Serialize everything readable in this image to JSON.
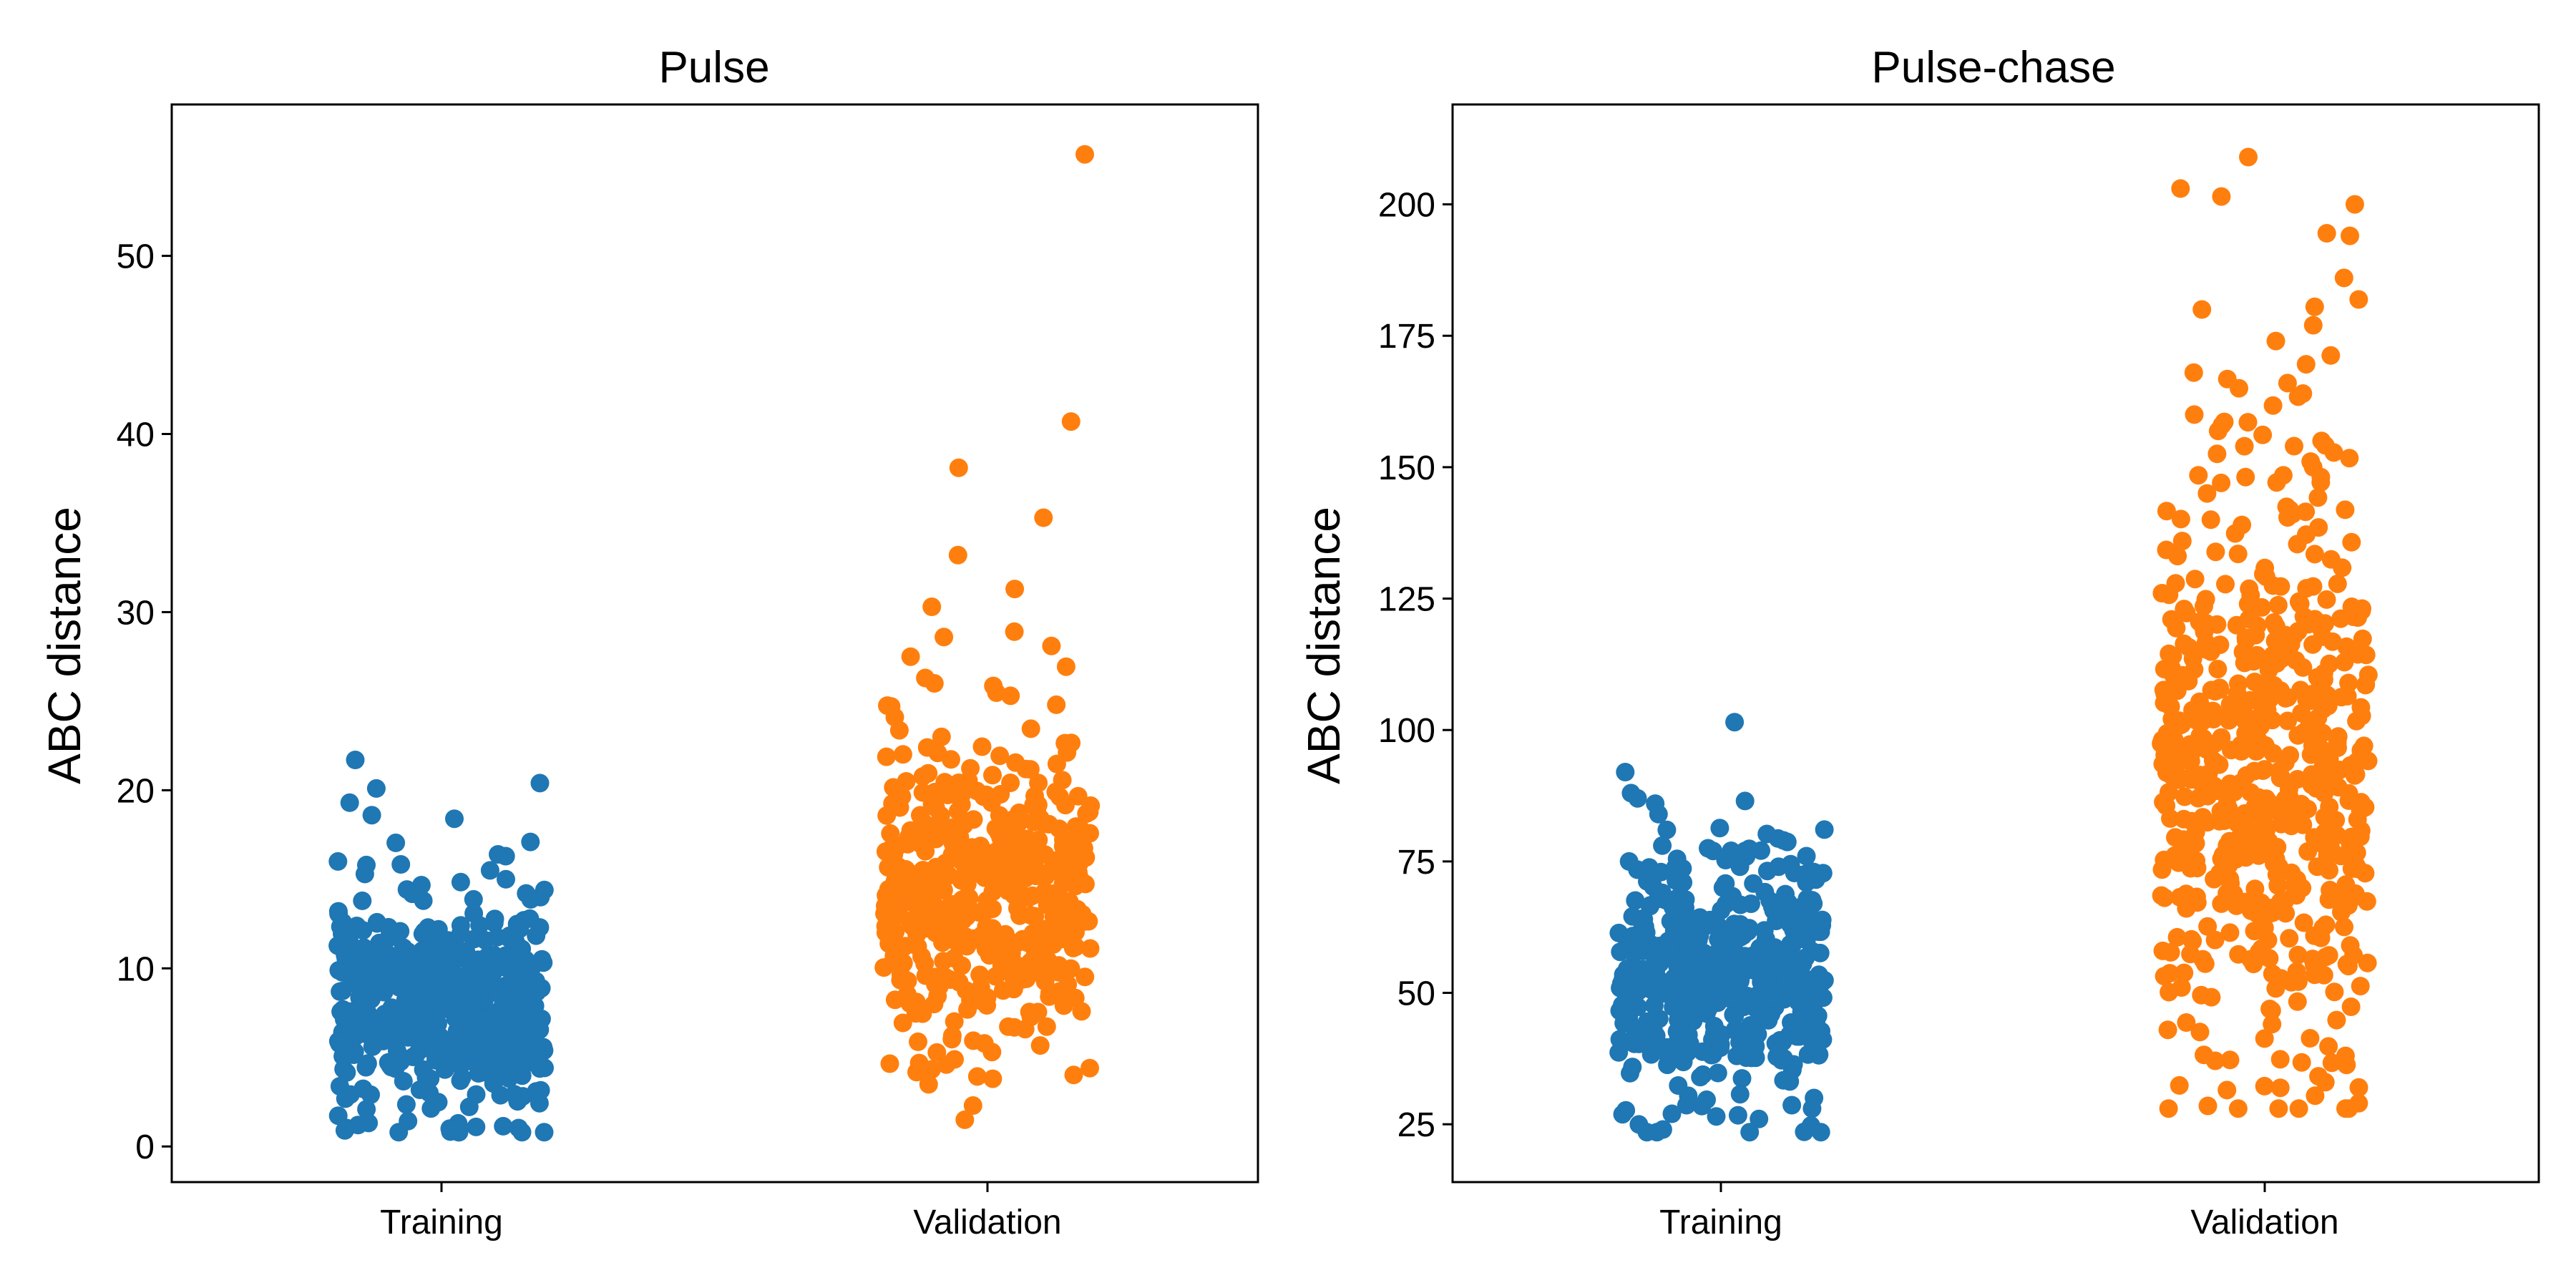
{
  "chart_data": [
    {
      "type": "scatter",
      "subtype": "strip",
      "title": "Pulse",
      "ylabel": "ABC distance",
      "xlabel": "",
      "categories": [
        "Training",
        "Validation"
      ],
      "ylim": [
        -2,
        58.5
      ],
      "yticks": [
        0,
        10,
        20,
        30,
        40,
        50
      ],
      "grid": false,
      "series": [
        {
          "category": "Training",
          "color": "#1f77b4",
          "count": 500,
          "distribution": {
            "center": 8,
            "spread": 3,
            "min": 0.8,
            "max": 21.7
          },
          "highlighted_values": [
            21.7,
            20.4,
            20.1,
            19.3,
            18.6,
            18.4,
            17.1,
            16.4,
            16.3,
            16.0,
            15.8,
            15.5,
            15.3,
            15.0,
            14.4,
            13.8,
            13.2,
            1.3,
            1.2,
            1.0,
            0.9,
            0.8
          ]
        },
        {
          "category": "Validation",
          "color": "#ff7f0e",
          "count": 500,
          "distribution": {
            "center": 14,
            "spread": 4,
            "min": 1.5,
            "max": 55.7
          },
          "highlighted_values": [
            55.7,
            40.7,
            38.1,
            35.3,
            33.2,
            31.3,
            30.3,
            28.9,
            28.6,
            28.1,
            27.5,
            26.3,
            26.0,
            25.3,
            24.8,
            24.1,
            23.0,
            22.4,
            4.6,
            4.4,
            3.8,
            2.3,
            1.5
          ]
        }
      ]
    },
    {
      "type": "scatter",
      "subtype": "strip",
      "title": "Pulse-chase",
      "ylabel": "ABC distance",
      "xlabel": "",
      "categories": [
        "Training",
        "Validation"
      ],
      "ylim": [
        14,
        219
      ],
      "yticks": [
        25,
        50,
        75,
        100,
        125,
        150,
        175,
        200
      ],
      "grid": false,
      "series": [
        {
          "category": "Training",
          "color": "#1f77b4",
          "count": 500,
          "distribution": {
            "center": 52,
            "spread": 11,
            "min": 23.5,
            "max": 101.5
          },
          "highlighted_values": [
            101.5,
            92,
            88,
            87,
            86.5,
            86,
            84,
            81,
            79,
            78,
            77.5,
            77,
            76,
            75.5,
            75,
            74,
            73,
            72,
            30,
            28,
            27,
            26.5,
            26,
            24,
            23.5
          ]
        },
        {
          "category": "Validation",
          "color": "#ff7f0e",
          "count": 600,
          "distribution": {
            "center": 95,
            "spread": 30,
            "min": 28,
            "max": 209
          },
          "highlighted_values": [
            209,
            203,
            201.5,
            200,
            194.5,
            186,
            180.5,
            180,
            177,
            174,
            168,
            166,
            164,
            160,
            158,
            155,
            154,
            150,
            147,
            145,
            32,
            31.5,
            29,
            28.5,
            28
          ]
        }
      ]
    }
  ]
}
